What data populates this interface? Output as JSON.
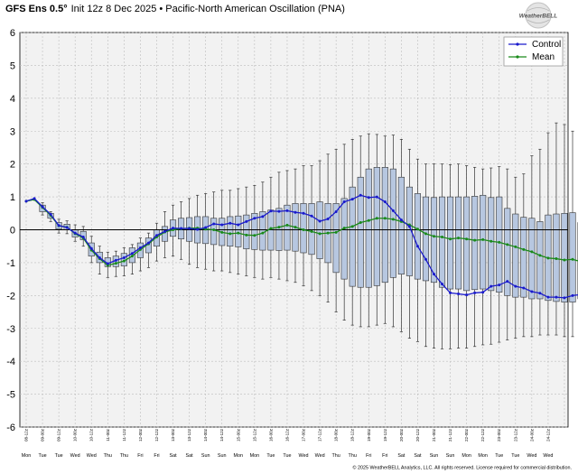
{
  "header": {
    "model": "GFS Ens 0.5°",
    "init": "Init 12z 8 Dec 2025",
    "bullet": "•",
    "variable": "Pacific-North American Oscillation (PNA)"
  },
  "logo": {
    "text": "WeatherBELL"
  },
  "footer": {
    "copyright": "© 2025 WeatherBELL Analytics, LLC. All rights reserved. License required for commercial distribution."
  },
  "colors": {
    "control": "#1a1acc",
    "mean": "#1a8a1a",
    "box_fill": "#b7c7e0",
    "box_stroke": "#333333",
    "whisker": "#333333",
    "grid": "#bdbdbd",
    "plot_bg": "#f2f2f2"
  },
  "chart_data": {
    "type": "box-line",
    "title": "GFS Ens 0.5° Init 12z 8 Dec 2025 • Pacific-North American Oscillation (PNA)",
    "ylim": [
      -6,
      6
    ],
    "yticks": [
      6,
      5,
      4,
      3,
      2,
      1,
      0,
      -1,
      -2,
      -3,
      -4,
      -5,
      -6
    ],
    "legend": {
      "position": "top-right",
      "entries": [
        "Control",
        "Mean"
      ]
    },
    "x_labels": [
      "08-12z",
      "09-00z",
      "09-12z",
      "10-00z",
      "10-12z",
      "11-00z",
      "11-12z",
      "12-00z",
      "12-12z",
      "13-00z",
      "13-12z",
      "14-00z",
      "14-12z",
      "15-00z",
      "15-12z",
      "16-00z",
      "16-12z",
      "17-00z",
      "17-12z",
      "18-00z",
      "18-12z",
      "19-00z",
      "19-12z",
      "20-00z",
      "20-12z",
      "21-00z",
      "21-12z",
      "22-00z",
      "22-12z",
      "23-00z",
      "23-12z",
      "24-00z",
      "24-12z"
    ],
    "day_labels": [
      "Mon",
      "Tue",
      "Tue",
      "Wed",
      "Wed",
      "Thu",
      "Thu",
      "Fri",
      "Fri",
      "Sat",
      "Sat",
      "Sun",
      "Sun",
      "Mon",
      "Mon",
      "Tue",
      "Tue",
      "Wed",
      "Wed",
      "Thu",
      "Thu",
      "Fri",
      "Fri",
      "Sat",
      "Sat",
      "Sun",
      "Sun",
      "Mon",
      "Mon",
      "Tue",
      "Tue",
      "Wed",
      "Wed"
    ],
    "series": [
      {
        "name": "Control",
        "values": [
          0.87,
          0.95,
          0.7,
          0.47,
          0.13,
          0.07,
          -0.1,
          -0.22,
          -0.57,
          -0.85,
          -1.03,
          -0.93,
          -0.85,
          -0.72,
          -0.55,
          -0.4,
          -0.17,
          -0.05,
          0.05,
          0.04,
          0.04,
          0.01,
          0.07,
          0.18,
          0.15,
          0.2,
          0.15,
          0.25,
          0.35,
          0.4,
          0.57,
          0.56,
          0.58,
          0.53,
          0.5,
          0.42,
          0.26,
          0.33,
          0.55,
          0.85,
          0.93,
          1.05,
          0.98,
          1.0,
          0.85,
          0.58,
          0.3,
          0.1,
          -0.5,
          -0.9,
          -1.35,
          -1.65,
          -1.92,
          -1.95,
          -1.98,
          -1.92,
          -1.9,
          -1.72,
          -1.68,
          -1.57,
          -1.72,
          -1.77,
          -1.88,
          -1.93,
          -2.05,
          -2.05,
          -2.07,
          -2.0,
          -1.97
        ]
      },
      {
        "name": "Mean",
        "values": [
          0.87,
          0.92,
          0.68,
          0.44,
          0.12,
          0.08,
          -0.12,
          -0.25,
          -0.62,
          -0.88,
          -1.08,
          -1.02,
          -0.95,
          -0.8,
          -0.6,
          -0.43,
          -0.22,
          -0.07,
          0.0,
          0.03,
          0.05,
          0.05,
          0.02,
          0.0,
          -0.08,
          -0.12,
          -0.1,
          -0.16,
          -0.17,
          -0.1,
          0.04,
          0.08,
          0.14,
          0.08,
          0.0,
          -0.05,
          -0.12,
          -0.1,
          -0.08,
          0.05,
          0.1,
          0.22,
          0.28,
          0.35,
          0.35,
          0.32,
          0.25,
          0.15,
          0.02,
          -0.12,
          -0.2,
          -0.22,
          -0.28,
          -0.25,
          -0.28,
          -0.32,
          -0.3,
          -0.35,
          -0.38,
          -0.45,
          -0.52,
          -0.6,
          -0.67,
          -0.78,
          -0.86,
          -0.88,
          -0.92,
          -0.9,
          -0.97
        ]
      },
      {
        "name": "Upper whisker",
        "values": [
          null,
          null,
          0.82,
          0.55,
          0.32,
          0.27,
          0.15,
          0.1,
          -0.2,
          -0.5,
          -0.68,
          -0.65,
          -0.55,
          -0.45,
          -0.25,
          -0.1,
          0.2,
          0.55,
          0.75,
          0.85,
          0.95,
          1.05,
          1.1,
          1.15,
          1.2,
          1.2,
          1.25,
          1.3,
          1.35,
          1.45,
          1.6,
          1.75,
          1.8,
          1.85,
          1.95,
          1.95,
          2.1,
          2.3,
          2.45,
          2.6,
          2.75,
          2.85,
          2.92,
          2.9,
          2.85,
          2.88,
          2.75,
          2.45,
          2.15,
          2.0,
          2.0,
          2.0,
          1.98,
          2.0,
          1.95,
          1.9,
          1.85,
          1.88,
          1.92,
          1.85,
          1.6,
          1.7,
          2.25,
          2.45,
          2.95,
          3.25,
          3.2,
          3.0,
          2.55
        ]
      },
      {
        "name": "Box top",
        "values": [
          null,
          null,
          0.75,
          0.5,
          0.22,
          0.17,
          0.0,
          -0.05,
          -0.4,
          -0.68,
          -0.85,
          -0.8,
          -0.72,
          -0.55,
          -0.4,
          -0.25,
          0.0,
          0.1,
          0.3,
          0.35,
          0.37,
          0.4,
          0.4,
          0.35,
          0.35,
          0.4,
          0.42,
          0.45,
          0.5,
          0.55,
          0.6,
          0.65,
          0.75,
          0.8,
          0.8,
          0.8,
          0.85,
          0.8,
          0.8,
          0.95,
          1.3,
          1.6,
          1.85,
          1.9,
          1.9,
          1.85,
          1.6,
          1.3,
          1.1,
          1.0,
          0.98,
          1.0,
          1.0,
          1.0,
          1.0,
          1.02,
          1.05,
          0.98,
          1.0,
          0.65,
          0.48,
          0.38,
          0.35,
          0.25,
          0.45,
          0.48,
          0.5,
          0.52,
          0.22
        ]
      },
      {
        "name": "Box bottom",
        "values": [
          null,
          null,
          0.55,
          0.35,
          0.02,
          0.0,
          -0.22,
          -0.3,
          -0.8,
          -1.0,
          -1.12,
          -1.12,
          -1.1,
          -1.0,
          -0.85,
          -0.7,
          -0.5,
          -0.35,
          -0.2,
          -0.28,
          -0.35,
          -0.4,
          -0.42,
          -0.45,
          -0.48,
          -0.5,
          -0.52,
          -0.58,
          -0.6,
          -0.62,
          -0.62,
          -0.63,
          -0.62,
          -0.65,
          -0.7,
          -0.75,
          -0.88,
          -1.0,
          -1.3,
          -1.5,
          -1.72,
          -1.75,
          -1.75,
          -1.7,
          -1.6,
          -1.45,
          -1.35,
          -1.4,
          -1.5,
          -1.55,
          -1.6,
          -1.75,
          -1.8,
          -1.8,
          -1.85,
          -1.82,
          -1.8,
          -1.85,
          -1.9,
          -2.0,
          -2.05,
          -2.05,
          -2.1,
          -2.1,
          -2.15,
          -2.18,
          -2.2,
          -2.2,
          -2.1
        ]
      },
      {
        "name": "Lower whisker",
        "values": [
          null,
          null,
          0.45,
          0.25,
          -0.1,
          -0.12,
          -0.35,
          -0.5,
          -1.0,
          -1.35,
          -1.45,
          -1.42,
          -1.4,
          -1.35,
          -1.25,
          -1.15,
          -0.95,
          -0.85,
          -0.8,
          -0.9,
          -1.05,
          -1.15,
          -1.2,
          -1.25,
          -1.25,
          -1.3,
          -1.35,
          -1.4,
          -1.45,
          -1.5,
          -1.45,
          -1.5,
          -1.55,
          -1.6,
          -1.7,
          -1.85,
          -2.0,
          -2.2,
          -2.5,
          -2.75,
          -2.9,
          -2.95,
          -2.95,
          -2.9,
          -2.85,
          -2.95,
          -3.1,
          -3.3,
          -3.4,
          -3.55,
          -3.6,
          -3.62,
          -3.62,
          -3.6,
          -3.6,
          -3.55,
          -3.5,
          -3.48,
          -3.42,
          -3.35,
          -3.3,
          -3.25,
          -3.25,
          -3.2,
          -3.2,
          -3.2,
          -3.25,
          -3.25,
          -3.35
        ]
      }
    ]
  }
}
